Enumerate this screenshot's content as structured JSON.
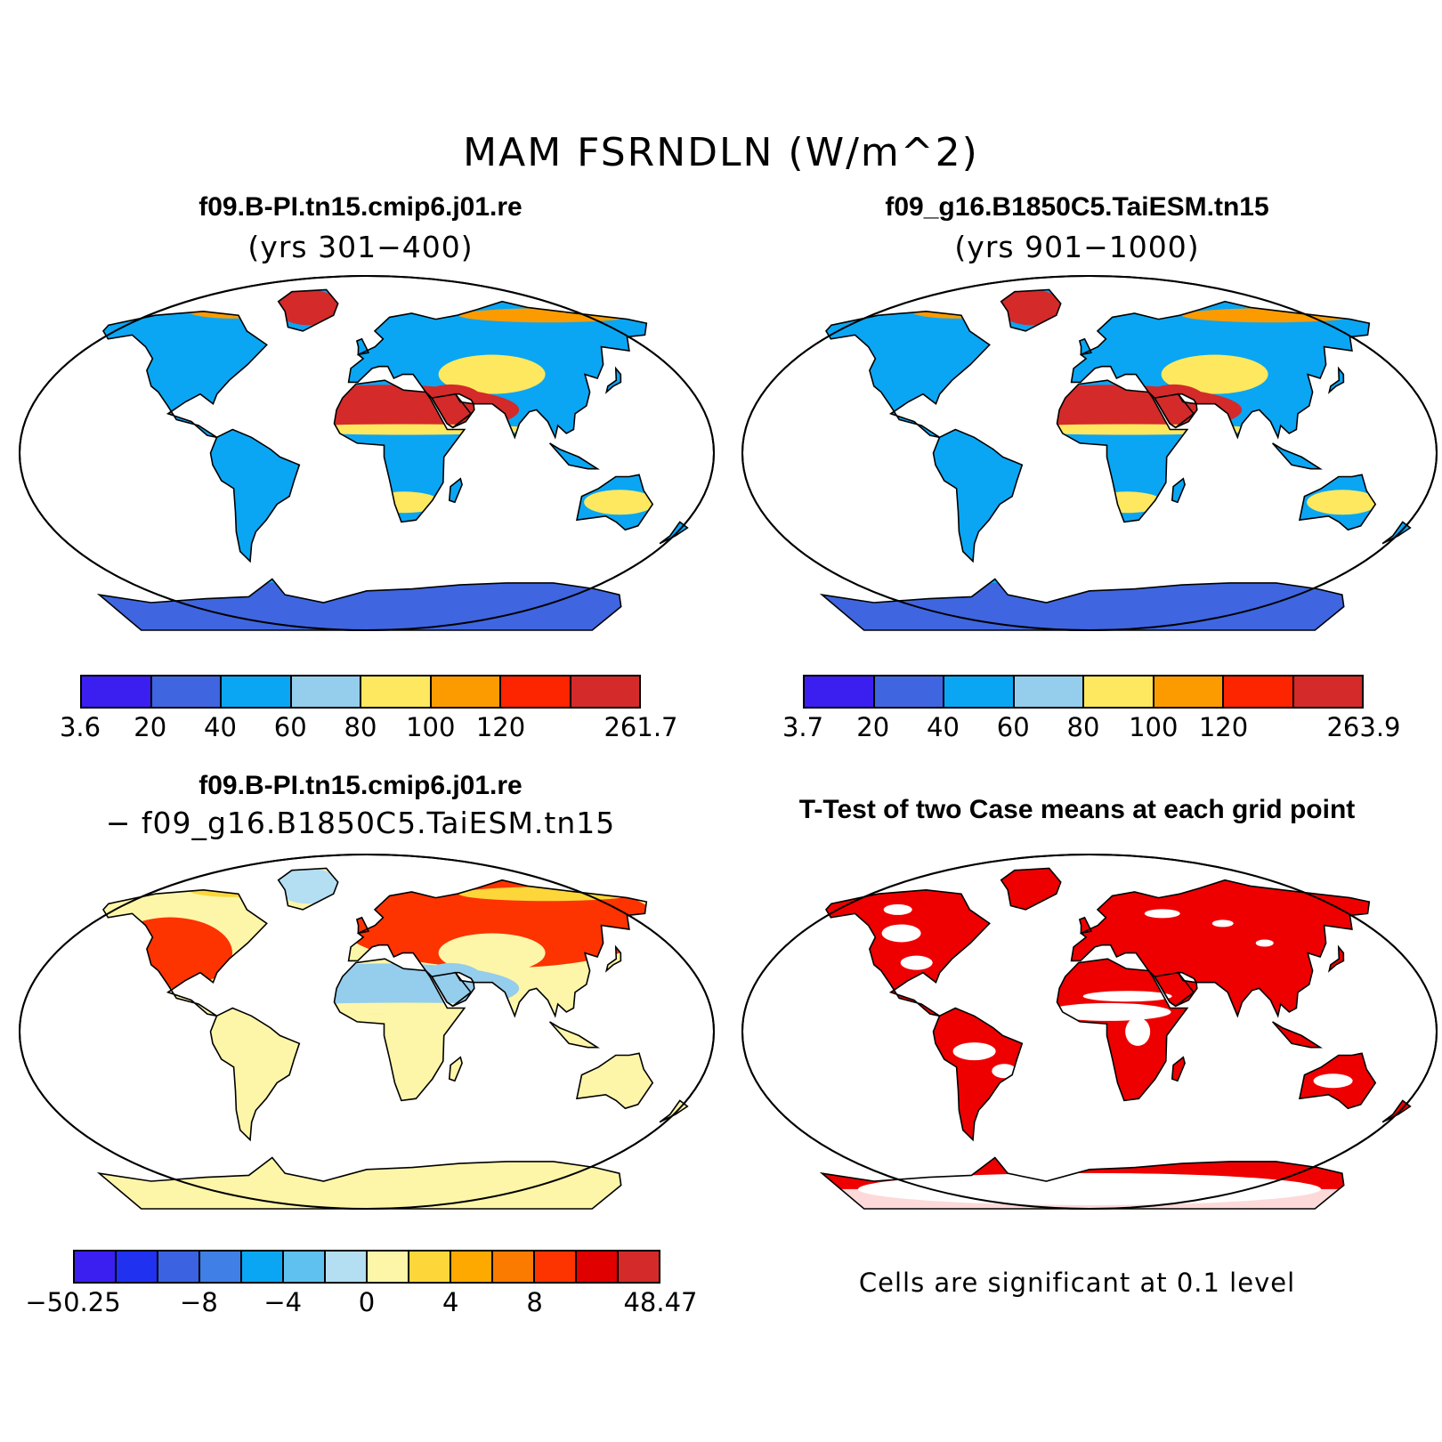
{
  "title": "MAM FSRNDLN (W/m^2)",
  "panels": [
    {
      "id": "case1",
      "title": "f09.B-PI.tn15.cmip6.j01.re",
      "subtitle": "(yrs 301−400)",
      "colorbar": {
        "colors": [
          "#3b1ff0",
          "#3f66e0",
          "#0aa6f3",
          "#95cdec",
          "#fde85f",
          "#fb9b00",
          "#fd2400",
          "#d42a2a"
        ],
        "tick_labels": [
          "3.6",
          "20",
          "40",
          "60",
          "80",
          "100",
          "120",
          "261.7"
        ],
        "min": 3.6,
        "max": 261.7
      }
    },
    {
      "id": "case2",
      "title": "f09_g16.B1850C5.TaiESM.tn15",
      "subtitle": "(yrs 901−1000)",
      "colorbar": {
        "colors": [
          "#3b1ff0",
          "#3f66e0",
          "#0aa6f3",
          "#95cdec",
          "#fde85f",
          "#fb9b00",
          "#fd2400",
          "#d42a2a"
        ],
        "tick_labels": [
          "3.7",
          "20",
          "40",
          "60",
          "80",
          "100",
          "120",
          "263.9"
        ],
        "min": 3.7,
        "max": 263.9
      }
    },
    {
      "id": "diff",
      "title": "f09.B-PI.tn15.cmip6.j01.re",
      "subtitle": "− f09_g16.B1850C5.TaiESM.tn15",
      "colorbar": {
        "colors": [
          "#3b1ff0",
          "#2031f0",
          "#3b62e0",
          "#3f7fe6",
          "#0aa6f3",
          "#5fc1ef",
          "#b4def2",
          "#fdf6a8",
          "#fdd63a",
          "#fda900",
          "#fb7a00",
          "#fd3300",
          "#e00000",
          "#d42a2a"
        ],
        "tick_labels": [
          "−50.25",
          "−8",
          "−4",
          "0",
          "4",
          "8",
          "48.47"
        ],
        "min": -50.25,
        "max": 48.47
      }
    },
    {
      "id": "ttest",
      "title": "T-Test of two Case means at each grid point",
      "note": "Cells are significant at 0.1 level",
      "significant_color": "#ee0000"
    }
  ],
  "map_colors": {
    "case": {
      "north": "#0aa6f3",
      "desert": "#d42a2a",
      "arid": "#fde85f",
      "tropic": "#0aa6f3",
      "antarctica": "#3f66e0",
      "greenland": "#d42a2a",
      "arctic": "#fb9b00"
    },
    "diff": {
      "north": "#fd3300",
      "desert": "#95cdec",
      "arid": "#fdf6a8",
      "tropic": "#fdf6a8",
      "antarctica": "#fdf6a8",
      "greenland": "#b4def2",
      "arctic": "#fdd63a"
    }
  }
}
